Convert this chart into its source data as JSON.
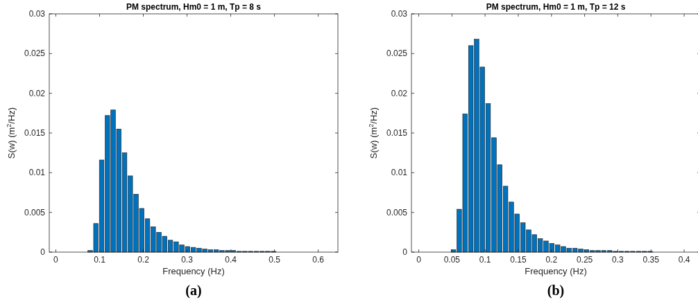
{
  "chart_data": [
    {
      "type": "bar",
      "title": "PM spectrum,  Hm0 = 1 m,  Tp = 8 s",
      "xlabel": "Frequency (Hz)",
      "ylabel": "S(w) (m$^{2}$/Hz)",
      "annotations": [
        "(a)"
      ],
      "color": "#0072bd",
      "x": [
        0.0786,
        0.0917,
        0.1048,
        0.1179,
        0.131,
        0.1441,
        0.1572,
        0.1703,
        0.1834,
        0.1965,
        0.2096,
        0.2227,
        0.2358,
        0.2489,
        0.262,
        0.2751,
        0.2882,
        0.3013,
        0.3144,
        0.3275,
        0.3406,
        0.3537,
        0.3668,
        0.3799,
        0.393,
        0.4061,
        0.4192,
        0.4323,
        0.4454,
        0.4585,
        0.4716,
        0.4847,
        0.4978,
        0.5109,
        0.524,
        0.5371,
        0.5502,
        0.5633,
        0.5764,
        0.5895,
        0.6026,
        0.6157,
        0.6288
      ],
      "values": [
        0.0002,
        0.0036,
        0.0116,
        0.0172,
        0.0179,
        0.0155,
        0.0125,
        0.0096,
        0.0073,
        0.0055,
        0.0042,
        0.0032,
        0.0025,
        0.002,
        0.0015,
        0.0013,
        0.0009,
        0.0007,
        0.0006,
        0.0005,
        0.0004,
        0.0003,
        0.0003,
        0.0002,
        0.0002,
        0.0002,
        0.0001,
        0.0001,
        0.0001,
        0.0001,
        0.0001,
        0.0001,
        0.0001,
        0,
        0,
        0,
        0,
        0,
        0,
        0,
        0,
        0,
        0
      ],
      "xlim": [
        -0.015,
        0.645
      ],
      "xticks": [
        0,
        0.1,
        0.2,
        0.3,
        0.4,
        0.5,
        0.6
      ],
      "ylim": [
        0,
        0.03
      ],
      "yticks": [
        0,
        0.005,
        0.01,
        0.015,
        0.02,
        0.025,
        0.03
      ]
    },
    {
      "type": "bar",
      "title": "PM spectrum,  Hm0 = 1 m,  Tp = 12 s",
      "xlabel": "Frequency (Hz)",
      "ylabel": "S(w) (m$^{2}$/Hz)",
      "annotations": [
        "(b)"
      ],
      "color": "#0072bd",
      "x": [
        0.0523,
        0.061,
        0.0698,
        0.0785,
        0.0872,
        0.0959,
        0.1046,
        0.1134,
        0.1221,
        0.1308,
        0.1395,
        0.1482,
        0.157,
        0.1657,
        0.1744,
        0.1831,
        0.1918,
        0.2006,
        0.2093,
        0.218,
        0.2267,
        0.2354,
        0.2442,
        0.2529,
        0.2616,
        0.2703,
        0.279,
        0.2878,
        0.2965,
        0.3052,
        0.3139,
        0.3226,
        0.3314,
        0.3401,
        0.3488,
        0.3575,
        0.3662,
        0.375,
        0.3837,
        0.3924,
        0.4011,
        0.4098,
        0.4186
      ],
      "values": [
        0.0003,
        0.0054,
        0.0174,
        0.026,
        0.0268,
        0.0233,
        0.0187,
        0.0144,
        0.011,
        0.0083,
        0.0063,
        0.0048,
        0.0037,
        0.0028,
        0.0022,
        0.0017,
        0.0014,
        0.0011,
        0.0009,
        0.0007,
        0.0005,
        0.0005,
        0.0004,
        0.0003,
        0.0002,
        0.0002,
        0.0002,
        0.0002,
        0.0001,
        0.0001,
        0.0001,
        0.0001,
        0.0001,
        0.0001,
        0.0001,
        0,
        0,
        0,
        0,
        0,
        0,
        0,
        0
      ],
      "xlim": [
        -0.011,
        0.424
      ],
      "xticks": [
        0,
        0.05,
        0.1,
        0.15,
        0.2,
        0.25,
        0.3,
        0.35,
        0.4
      ],
      "ylim": [
        0,
        0.03
      ],
      "yticks": [
        0,
        0.005,
        0.01,
        0.015,
        0.02,
        0.025,
        0.03
      ]
    }
  ]
}
